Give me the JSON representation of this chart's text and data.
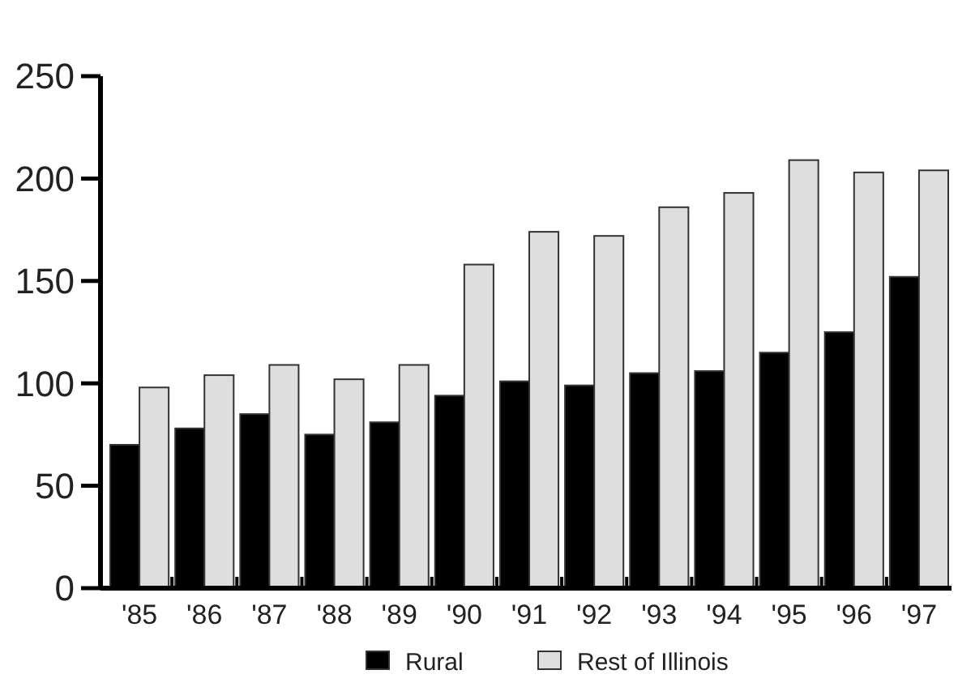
{
  "chart_data": {
    "type": "bar",
    "categories": [
      "'85",
      "'86",
      "'87",
      "'88",
      "'89",
      "'90",
      "'91",
      "'92",
      "'93",
      "'94",
      "'95",
      "'96",
      "'97"
    ],
    "series": [
      {
        "name": "Rural",
        "color": "#000000",
        "values": [
          70,
          78,
          85,
          75,
          81,
          94,
          101,
          99,
          105,
          106,
          115,
          125,
          152
        ]
      },
      {
        "name": "Rest of Illinois",
        "color": "#dedede",
        "values": [
          98,
          104,
          109,
          102,
          109,
          158,
          174,
          172,
          186,
          193,
          209,
          203,
          204
        ]
      }
    ],
    "ylim": [
      0,
      250
    ],
    "yticks": [
      0,
      50,
      100,
      150,
      200,
      250
    ],
    "grid": false,
    "legend": "bottom"
  }
}
